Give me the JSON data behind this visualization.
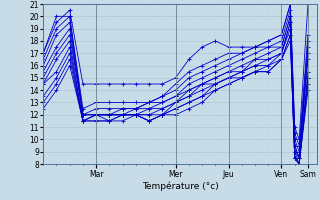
{
  "xlabel": "Température (°c)",
  "xlim": [
    0,
    124
  ],
  "ylim": [
    8,
    21
  ],
  "yticks": [
    8,
    9,
    10,
    11,
    12,
    13,
    14,
    15,
    16,
    17,
    18,
    19,
    20,
    21
  ],
  "day_tick_positions": [
    24,
    60,
    84,
    108,
    120
  ],
  "day_labels": [
    "Mar",
    "Mer",
    "Jeu",
    "Ven",
    "Sam"
  ],
  "background_color": "#c8dce8",
  "grid_color_major": "#b0c8d4",
  "grid_color_minor": "#c0d4de",
  "line_color": "#0000cc",
  "series": [
    [
      17.0,
      19.5,
      20.5,
      14.5,
      14.5,
      14.5,
      14.5,
      14.5,
      14.5,
      14.5,
      15.0,
      16.5,
      17.5,
      18.0,
      17.5,
      17.5,
      17.5,
      18.0,
      18.5,
      21.0,
      11.0,
      10.0,
      21.0
    ],
    [
      17.0,
      20.0,
      20.0,
      12.5,
      13.0,
      13.0,
      13.0,
      13.0,
      13.0,
      13.5,
      14.5,
      15.5,
      16.0,
      16.5,
      17.0,
      17.0,
      17.5,
      18.0,
      18.5,
      21.0,
      10.5,
      9.5,
      18.5
    ],
    [
      16.5,
      19.0,
      20.0,
      12.0,
      12.5,
      12.5,
      12.5,
      12.5,
      13.0,
      13.5,
      14.0,
      15.0,
      15.5,
      16.0,
      16.5,
      17.0,
      17.5,
      17.5,
      18.0,
      20.5,
      10.0,
      9.0,
      18.0
    ],
    [
      16.0,
      18.5,
      19.5,
      12.0,
      12.0,
      12.0,
      12.5,
      12.5,
      13.0,
      13.0,
      13.5,
      14.5,
      15.0,
      15.5,
      16.0,
      16.5,
      17.0,
      17.5,
      17.5,
      20.0,
      9.5,
      8.5,
      17.5
    ],
    [
      15.5,
      17.5,
      19.0,
      12.0,
      12.0,
      12.0,
      12.0,
      12.5,
      12.5,
      13.0,
      13.5,
      14.0,
      14.5,
      15.0,
      15.5,
      16.0,
      16.5,
      17.0,
      17.5,
      20.0,
      9.5,
      8.5,
      17.0
    ],
    [
      15.0,
      17.0,
      18.5,
      12.0,
      12.0,
      12.0,
      12.0,
      12.0,
      12.5,
      12.5,
      13.0,
      14.0,
      14.5,
      15.0,
      15.5,
      15.5,
      16.5,
      16.5,
      17.0,
      19.5,
      9.0,
      8.5,
      16.5
    ],
    [
      14.5,
      16.5,
      18.0,
      11.5,
      12.0,
      12.0,
      12.0,
      12.0,
      12.0,
      12.5,
      13.0,
      13.5,
      14.5,
      14.5,
      15.0,
      15.5,
      16.0,
      16.5,
      17.0,
      19.5,
      9.0,
      8.0,
      15.5
    ],
    [
      14.5,
      15.5,
      17.5,
      11.5,
      12.0,
      12.0,
      12.0,
      12.0,
      12.0,
      12.0,
      13.0,
      13.5,
      14.0,
      14.5,
      15.0,
      15.5,
      16.0,
      16.0,
      17.0,
      19.0,
      8.5,
      8.0,
      15.0
    ],
    [
      13.5,
      15.0,
      17.0,
      11.5,
      12.0,
      11.5,
      12.0,
      12.0,
      11.5,
      12.0,
      12.5,
      13.0,
      13.5,
      14.5,
      15.0,
      15.0,
      15.5,
      16.0,
      16.5,
      18.5,
      8.5,
      8.0,
      14.5
    ],
    [
      13.0,
      14.5,
      16.5,
      11.5,
      11.5,
      11.5,
      12.0,
      12.0,
      11.5,
      12.0,
      12.5,
      13.0,
      13.5,
      14.0,
      14.5,
      15.0,
      15.5,
      15.5,
      16.5,
      18.0,
      8.5,
      8.0,
      14.0
    ],
    [
      12.5,
      14.0,
      16.0,
      11.5,
      11.5,
      11.5,
      11.5,
      12.0,
      11.5,
      12.0,
      12.0,
      12.5,
      13.0,
      14.0,
      14.5,
      15.0,
      15.5,
      15.5,
      16.5,
      18.5,
      8.5,
      8.0,
      15.0
    ]
  ],
  "x_values": [
    0,
    6,
    12,
    18,
    24,
    30,
    36,
    42,
    48,
    54,
    60,
    66,
    72,
    78,
    84,
    90,
    96,
    102,
    108,
    112,
    114,
    116,
    120
  ]
}
